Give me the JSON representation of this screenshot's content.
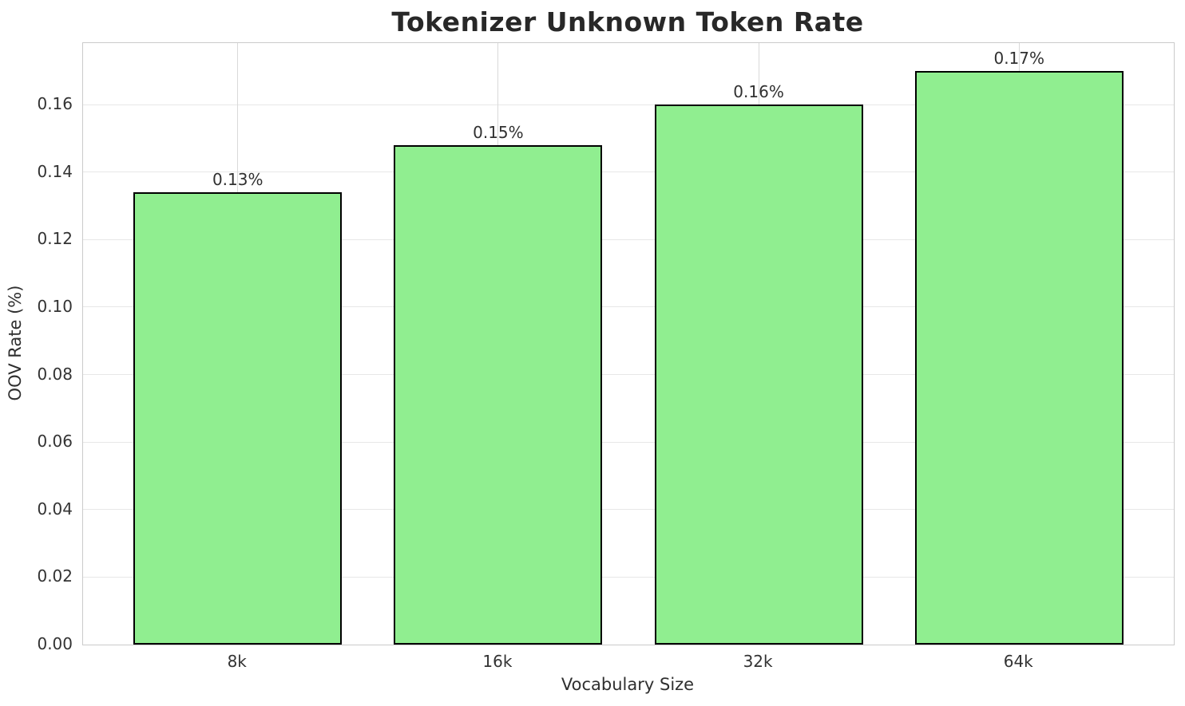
{
  "chart_data": {
    "type": "bar",
    "title": "Tokenizer Unknown Token Rate",
    "xlabel": "Vocabulary Size",
    "ylabel": "OOV Rate (%)",
    "categories": [
      "8k",
      "16k",
      "32k",
      "64k"
    ],
    "values": [
      0.134,
      0.148,
      0.16,
      0.17
    ],
    "bar_labels": [
      "0.13%",
      "0.15%",
      "0.16%",
      "0.17%"
    ],
    "ytick_labels": [
      "0.00",
      "0.02",
      "0.04",
      "0.06",
      "0.08",
      "0.10",
      "0.12",
      "0.14",
      "0.16"
    ],
    "yticks": [
      0.0,
      0.02,
      0.04,
      0.06,
      0.08,
      0.1,
      0.12,
      0.14,
      0.16
    ],
    "ylim": [
      0,
      0.1782
    ],
    "xlim": [
      -0.594,
      3.594
    ],
    "bar_width": 0.8,
    "grid": true,
    "legend": "none",
    "colors": {
      "bar_fill": "#90EE90",
      "bar_edge": "#000000",
      "grid_line": "#e0e0e0",
      "spine": "#cbcbcb",
      "title_text": "#282828",
      "tick_text": "#333333",
      "background": "#ffffff"
    }
  }
}
